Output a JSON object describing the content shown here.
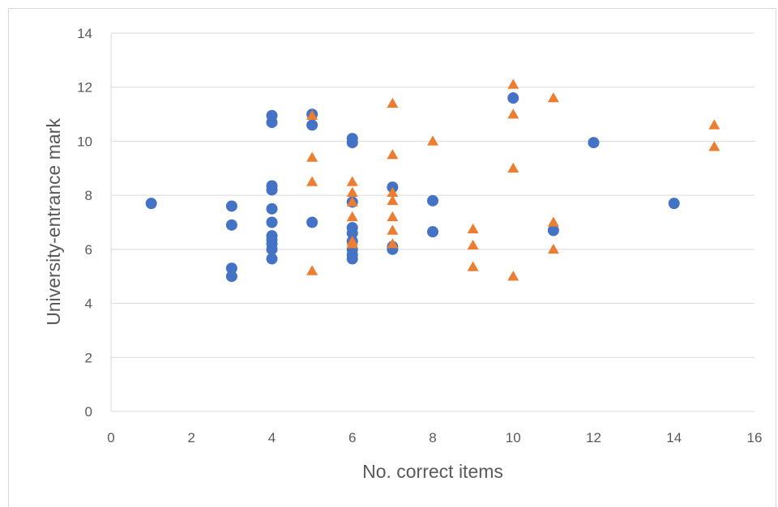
{
  "chart_data": {
    "type": "scatter",
    "xlabel": "No. correct items",
    "ylabel": "University-entrance mark",
    "xlim": [
      0,
      16
    ],
    "ylim": [
      0,
      14
    ],
    "x_ticks": [
      0,
      2,
      4,
      6,
      8,
      10,
      12,
      14,
      16
    ],
    "y_ticks": [
      0,
      2,
      4,
      6,
      8,
      10,
      12,
      14
    ],
    "grid": "horizontal",
    "legend": "none",
    "series": [
      {
        "marker": "circle",
        "color": "#4472c4",
        "points": [
          [
            1,
            7.7
          ],
          [
            3,
            7.6
          ],
          [
            3,
            6.9
          ],
          [
            3,
            5.3
          ],
          [
            3,
            5.0
          ],
          [
            4,
            10.95
          ],
          [
            4,
            10.7
          ],
          [
            4,
            8.35
          ],
          [
            4,
            8.2
          ],
          [
            4,
            7.5
          ],
          [
            4,
            7.0
          ],
          [
            4,
            6.5
          ],
          [
            4,
            6.35
          ],
          [
            4,
            6.2
          ],
          [
            4,
            6.0
          ],
          [
            4,
            5.65
          ],
          [
            5,
            11.0
          ],
          [
            5,
            10.6
          ],
          [
            5,
            7.0
          ],
          [
            6,
            10.1
          ],
          [
            6,
            9.95
          ],
          [
            6,
            7.75
          ],
          [
            6,
            6.8
          ],
          [
            6,
            6.6
          ],
          [
            6,
            6.3
          ],
          [
            6,
            6.0
          ],
          [
            6,
            5.8
          ],
          [
            6,
            5.65
          ],
          [
            7,
            8.3
          ],
          [
            7,
            6.1
          ],
          [
            7,
            6.0
          ],
          [
            8,
            7.8
          ],
          [
            8,
            6.65
          ],
          [
            10,
            11.6
          ],
          [
            11,
            6.7
          ],
          [
            12,
            9.95
          ],
          [
            14,
            7.7
          ]
        ]
      },
      {
        "marker": "triangle",
        "color": "#ed7d31",
        "points": [
          [
            5,
            10.95
          ],
          [
            5,
            9.4
          ],
          [
            5,
            8.5
          ],
          [
            5,
            5.2
          ],
          [
            6,
            8.5
          ],
          [
            6,
            8.1
          ],
          [
            6,
            7.75
          ],
          [
            6,
            7.2
          ],
          [
            6,
            6.3
          ],
          [
            6,
            6.2
          ],
          [
            7,
            11.4
          ],
          [
            7,
            9.5
          ],
          [
            7,
            8.1
          ],
          [
            7,
            7.8
          ],
          [
            7,
            7.2
          ],
          [
            7,
            6.7
          ],
          [
            7,
            6.2
          ],
          [
            8,
            10.0
          ],
          [
            9,
            6.75
          ],
          [
            9,
            6.15
          ],
          [
            9,
            5.35
          ],
          [
            10,
            12.1
          ],
          [
            10,
            11.0
          ],
          [
            10,
            9.0
          ],
          [
            10,
            5.0
          ],
          [
            11,
            11.6
          ],
          [
            11,
            7.0
          ],
          [
            11,
            6.0
          ],
          [
            15,
            10.6
          ],
          [
            15,
            9.8
          ]
        ]
      }
    ]
  }
}
